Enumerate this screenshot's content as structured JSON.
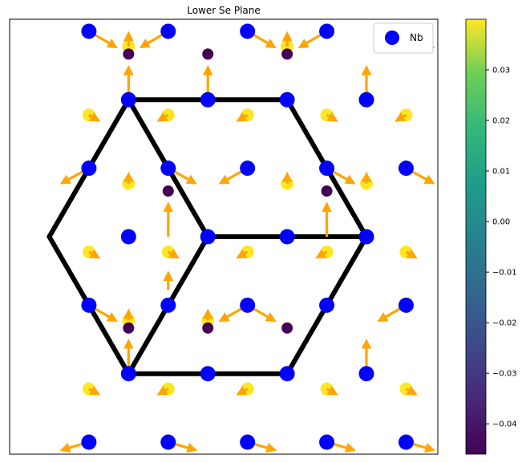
{
  "chart_data": {
    "type": "scatter",
    "title": "Lower Se Plane",
    "xlabel": "",
    "ylabel": "",
    "grid": false,
    "axes_ticks_visible": false,
    "legend": {
      "placement": "top-right",
      "entries": [
        {
          "label": "Nb",
          "color": "#0000ff",
          "marker": "circle"
        }
      ]
    },
    "colors": {
      "nb": "#0000ff",
      "arrow": "#ffa500",
      "bond": "#000000"
    },
    "lattice_note_values": {
      "a1": [
        1.0,
        0.0
      ],
      "a2": [
        0.5,
        0.8660254
      ],
      "nb_site_offset": [
        0.0,
        0.0
      ],
      "upper_site_offset": [
        0.5,
        0.2886751
      ],
      "lower_site_offset": [
        1.0,
        0.5773503
      ]
    },
    "series": [
      {
        "name": "Nb",
        "color": "#0000ff",
        "marker": "circle",
        "points": [
          [
            -1.5,
            2.5981
          ],
          [
            -0.5,
            2.5981
          ],
          [
            0.5,
            2.5981
          ],
          [
            1.5,
            2.5981
          ],
          [
            2.5,
            2.5981
          ],
          [
            -1.0,
            1.7321
          ],
          [
            0.0,
            1.7321
          ],
          [
            1.0,
            1.7321
          ],
          [
            2.0,
            1.7321
          ],
          [
            -1.5,
            0.866
          ],
          [
            -0.5,
            0.866
          ],
          [
            0.5,
            0.866
          ],
          [
            1.5,
            0.866
          ],
          [
            2.5,
            0.866
          ],
          [
            -1.0,
            0.0
          ],
          [
            0.0,
            0.0
          ],
          [
            1.0,
            0.0
          ],
          [
            2.0,
            0.0
          ],
          [
            -1.5,
            -0.866
          ],
          [
            -0.5,
            -0.866
          ],
          [
            0.5,
            -0.866
          ],
          [
            1.5,
            -0.866
          ],
          [
            2.5,
            -0.866
          ],
          [
            -1.0,
            -1.7321
          ],
          [
            0.0,
            -1.7321
          ],
          [
            1.0,
            -1.7321
          ],
          [
            2.0,
            -1.7321
          ],
          [
            -1.5,
            -2.5981
          ],
          [
            -0.5,
            -2.5981
          ],
          [
            0.5,
            -2.5981
          ],
          [
            1.5,
            -2.5981
          ],
          [
            2.5,
            -2.5981
          ]
        ]
      },
      {
        "name": "",
        "color_value": 0.038,
        "marker": "circle",
        "points": [
          [
            -1.0,
            2.4056
          ],
          [
            1.0,
            2.4056
          ],
          [
            -1.5,
            1.5396
          ],
          [
            -0.5,
            1.5396
          ],
          [
            0.5,
            1.5396
          ],
          [
            1.5,
            1.5396
          ],
          [
            2.5,
            1.5396
          ],
          [
            -1.0,
            0.6736
          ],
          [
            1.0,
            0.6736
          ],
          [
            2.0,
            0.6736
          ],
          [
            -1.5,
            -0.1925
          ],
          [
            -0.5,
            -0.1925
          ],
          [
            0.5,
            -0.1925
          ],
          [
            1.5,
            -0.1925
          ],
          [
            2.5,
            -0.1925
          ],
          [
            -1.0,
            -1.0585
          ],
          [
            0.0,
            -1.0585
          ],
          [
            -1.5,
            -1.9245
          ],
          [
            -0.5,
            -1.9245
          ],
          [
            0.5,
            -1.9245
          ],
          [
            1.5,
            -1.9245
          ],
          [
            2.5,
            -1.9245
          ]
        ]
      },
      {
        "name": "",
        "color_value": -0.045,
        "marker": "circle",
        "points": [
          [
            -1.0,
            2.3094
          ],
          [
            0.0,
            2.3094
          ],
          [
            1.0,
            2.3094
          ],
          [
            -0.5,
            0.5774
          ],
          [
            1.5,
            0.5774
          ],
          [
            -1.0,
            -1.1547
          ],
          [
            0.0,
            -1.1547
          ],
          [
            1.0,
            -1.1547
          ]
        ]
      }
    ],
    "arrows": [
      {
        "from": [
          -1.5,
          2.5981
        ],
        "to": [
          -1.18,
          2.41
        ]
      },
      {
        "from": [
          -0.5,
          2.5981
        ],
        "to": [
          -0.82,
          2.41
        ]
      },
      {
        "from": [
          0.5,
          2.5981
        ],
        "to": [
          0.82,
          2.41
        ]
      },
      {
        "from": [
          1.5,
          2.5981
        ],
        "to": [
          1.18,
          2.41
        ]
      },
      {
        "from": [
          2.5,
          2.5981
        ],
        "to": [
          2.82,
          2.41
        ]
      },
      {
        "from": [
          -1.0,
          1.7321
        ],
        "to": [
          -1.0,
          2.12
        ]
      },
      {
        "from": [
          2.0,
          1.7321
        ],
        "to": [
          2.0,
          2.12
        ]
      },
      {
        "from": [
          0.0,
          1.7321
        ],
        "to": [
          0.0,
          2.12
        ]
      },
      {
        "from": [
          -1.5,
          0.866
        ],
        "to": [
          -1.82,
          0.69
        ]
      },
      {
        "from": [
          -0.5,
          0.866
        ],
        "to": [
          -0.18,
          0.69
        ]
      },
      {
        "from": [
          0.5,
          0.866
        ],
        "to": [
          0.18,
          0.69
        ]
      },
      {
        "from": [
          1.5,
          0.866
        ],
        "to": [
          1.82,
          0.69
        ]
      },
      {
        "from": [
          2.5,
          0.866
        ],
        "to": [
          2.82,
          0.69
        ]
      },
      {
        "from": [
          -0.5,
          0.0
        ],
        "to": [
          -0.5,
          0.39
        ]
      },
      {
        "from": [
          1.5,
          0.0
        ],
        "to": [
          1.5,
          0.39
        ]
      },
      {
        "from": [
          -1.5,
          -0.866
        ],
        "to": [
          -1.18,
          -1.05
        ]
      },
      {
        "from": [
          0.5,
          -0.866
        ],
        "to": [
          0.18,
          -1.05
        ]
      },
      {
        "from": [
          0.5,
          -0.866
        ],
        "to": [
          0.82,
          -1.05
        ]
      },
      {
        "from": [
          2.5,
          -0.866
        ],
        "to": [
          2.18,
          -1.05
        ]
      },
      {
        "from": [
          -1.0,
          -1.7321
        ],
        "to": [
          -1.0,
          -1.34
        ]
      },
      {
        "from": [
          2.0,
          -1.7321
        ],
        "to": [
          2.0,
          -1.34
        ]
      },
      {
        "from": [
          -0.5,
          -2.5981
        ],
        "to": [
          -0.18,
          -2.69
        ]
      },
      {
        "from": [
          0.5,
          -2.5981
        ],
        "to": [
          0.82,
          -2.69
        ]
      },
      {
        "from": [
          1.5,
          -2.5981
        ],
        "to": [
          1.82,
          -2.69
        ]
      },
      {
        "from": [
          2.5,
          -2.5981
        ],
        "to": [
          2.82,
          -2.69
        ]
      },
      {
        "from": [
          -1.5,
          -2.5981
        ],
        "to": [
          -1.82,
          -2.69
        ]
      },
      {
        "from": [
          -0.5,
          -0.6736
        ],
        "to": [
          -0.5,
          -0.48
        ]
      },
      {
        "from": [
          -1.5,
          1.5396
        ],
        "to": [
          -1.4,
          1.48
        ]
      },
      {
        "from": [
          -0.5,
          1.5396
        ],
        "to": [
          -0.6,
          1.48
        ]
      },
      {
        "from": [
          0.5,
          1.5396
        ],
        "to": [
          0.4,
          1.48
        ]
      },
      {
        "from": [
          1.5,
          1.5396
        ],
        "to": [
          1.6,
          1.48
        ]
      },
      {
        "from": [
          2.5,
          1.5396
        ],
        "to": [
          2.4,
          1.48
        ]
      },
      {
        "from": [
          -1.5,
          -0.1925
        ],
        "to": [
          -1.4,
          -0.25
        ]
      },
      {
        "from": [
          -0.5,
          -0.1925
        ],
        "to": [
          -0.4,
          -0.25
        ]
      },
      {
        "from": [
          0.5,
          -0.1925
        ],
        "to": [
          0.4,
          -0.25
        ]
      },
      {
        "from": [
          1.5,
          -0.1925
        ],
        "to": [
          1.4,
          -0.25
        ]
      },
      {
        "from": [
          2.5,
          -0.1925
        ],
        "to": [
          2.6,
          -0.25
        ]
      },
      {
        "from": [
          -1.5,
          -1.9245
        ],
        "to": [
          -1.4,
          -1.98
        ]
      },
      {
        "from": [
          -0.5,
          -1.9245
        ],
        "to": [
          -0.6,
          -1.98
        ]
      },
      {
        "from": [
          0.5,
          -1.9245
        ],
        "to": [
          0.4,
          -1.98
        ]
      },
      {
        "from": [
          1.5,
          -1.9245
        ],
        "to": [
          1.6,
          -1.98
        ]
      },
      {
        "from": [
          2.5,
          -1.9245
        ],
        "to": [
          2.6,
          -1.98
        ]
      },
      {
        "from": [
          -1.0,
          2.4056
        ],
        "to": [
          -1.0,
          2.55
        ]
      },
      {
        "from": [
          1.0,
          2.4056
        ],
        "to": [
          1.0,
          2.55
        ]
      },
      {
        "from": [
          -1.0,
          0.6736
        ],
        "to": [
          -1.0,
          0.77
        ]
      },
      {
        "from": [
          1.0,
          0.6736
        ],
        "to": [
          1.0,
          0.77
        ]
      },
      {
        "from": [
          2.0,
          0.6736
        ],
        "to": [
          2.0,
          0.77
        ]
      },
      {
        "from": [
          -1.0,
          -1.0585
        ],
        "to": [
          -1.0,
          -0.96
        ]
      },
      {
        "from": [
          0.0,
          -1.0585
        ],
        "to": [
          0.0,
          -0.96
        ]
      }
    ],
    "bonds": [
      [
        [
          -1.0,
          1.7321
        ],
        [
          0.0,
          1.7321
        ]
      ],
      [
        [
          0.0,
          1.7321
        ],
        [
          1.0,
          1.7321
        ]
      ],
      [
        [
          1.0,
          1.7321
        ],
        [
          1.5,
          0.866
        ]
      ],
      [
        [
          1.5,
          0.866
        ],
        [
          2.0,
          0.0
        ]
      ],
      [
        [
          2.0,
          0.0
        ],
        [
          1.5,
          -0.866
        ]
      ],
      [
        [
          1.5,
          -0.866
        ],
        [
          1.0,
          -1.7321
        ]
      ],
      [
        [
          1.0,
          -1.7321
        ],
        [
          0.0,
          -1.7321
        ]
      ],
      [
        [
          0.0,
          -1.7321
        ],
        [
          -1.0,
          -1.7321
        ]
      ],
      [
        [
          -1.0,
          -1.7321
        ],
        [
          -1.5,
          -0.866
        ]
      ],
      [
        [
          -1.5,
          -0.866
        ],
        [
          -2.0,
          0.0
        ]
      ],
      [
        [
          -2.0,
          0.0
        ],
        [
          -1.5,
          0.866
        ]
      ],
      [
        [
          -1.5,
          0.866
        ],
        [
          -1.0,
          1.7321
        ]
      ],
      [
        [
          -1.0,
          1.7321
        ],
        [
          -0.5,
          0.866
        ]
      ],
      [
        [
          -0.5,
          0.866
        ],
        [
          0.0,
          0.0
        ]
      ],
      [
        [
          0.0,
          0.0
        ],
        [
          1.0,
          0.0
        ]
      ],
      [
        [
          1.0,
          0.0
        ],
        [
          2.0,
          0.0
        ]
      ],
      [
        [
          0.0,
          0.0
        ],
        [
          -0.5,
          -0.866
        ]
      ],
      [
        [
          -0.5,
          -0.866
        ],
        [
          -1.0,
          -1.7321
        ]
      ]
    ],
    "xlim": [
      -2.5,
      2.9
    ],
    "ylim": [
      -2.75,
      2.75
    ],
    "colorbar": {
      "range": [
        -0.046,
        0.04
      ],
      "ticks": [
        0.03,
        0.02,
        0.01,
        0.0,
        -0.01,
        -0.02,
        -0.03,
        -0.04
      ],
      "tick_labels": [
        "0.03",
        "0.02",
        "0.01",
        "0.00",
        "−0.01",
        "−0.02",
        "−0.03",
        "−0.04"
      ]
    }
  }
}
